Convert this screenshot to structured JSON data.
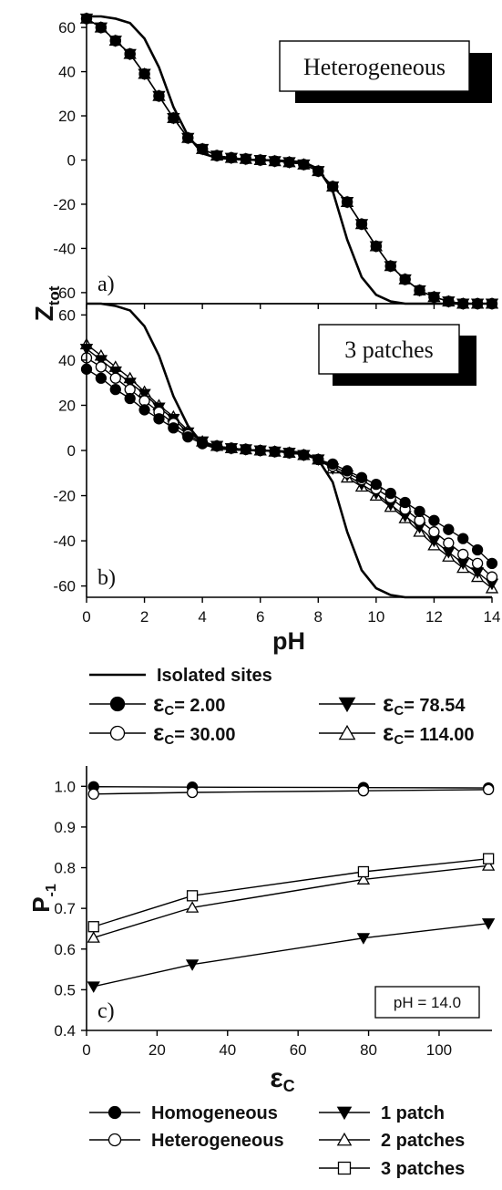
{
  "chart_data": [
    {
      "panel": "a)",
      "type": "line",
      "title": "",
      "annotation": "Heterogeneous",
      "xlim": [
        0,
        14
      ],
      "ylim": [
        -65,
        65
      ],
      "xticks": [
        0,
        2,
        4,
        6,
        8,
        10,
        12,
        14
      ],
      "yticks": [
        60,
        40,
        20,
        0,
        -20,
        -40,
        -60
      ],
      "series": [
        {
          "name": "Isolated sites",
          "marker": "none",
          "x": [
            0,
            0.5,
            1,
            1.5,
            2,
            2.5,
            3,
            3.5,
            4,
            4.5,
            5,
            5.5,
            6,
            6.5,
            7,
            7.5,
            8,
            8.5,
            9,
            9.5,
            10,
            10.5,
            11,
            11.5,
            12,
            13,
            14
          ],
          "y": [
            65,
            65,
            64,
            62,
            55,
            42,
            24,
            11,
            3,
            1,
            0.5,
            0.2,
            0,
            -0.2,
            -0.5,
            -1,
            -4,
            -14,
            -36,
            -53,
            -61,
            -64,
            -65,
            -65,
            -65,
            -65,
            -65
          ]
        },
        {
          "name": "εC= 2.00",
          "marker": "filled-circle",
          "x": [
            0,
            0.5,
            1,
            1.5,
            2,
            2.5,
            3,
            3.5,
            4,
            4.5,
            5,
            5.5,
            6,
            6.5,
            7,
            7.5,
            8,
            8.5,
            9,
            9.5,
            10,
            10.5,
            11,
            11.5,
            12,
            12.5,
            13,
            13.5,
            14
          ],
          "y": [
            64,
            60,
            54,
            48,
            39,
            29,
            19,
            10,
            5,
            2,
            1,
            0.5,
            0,
            -0.5,
            -1,
            -2,
            -5,
            -12,
            -19,
            -29,
            -39,
            -48,
            -54,
            -59,
            -62,
            -64,
            -65,
            -65,
            -65
          ]
        },
        {
          "name": "εC= 30.00",
          "marker": "open-circle",
          "x": [
            0,
            0.5,
            1,
            1.5,
            2,
            2.5,
            3,
            3.5,
            4,
            4.5,
            5,
            5.5,
            6,
            6.5,
            7,
            7.5,
            8,
            8.5,
            9,
            9.5,
            10,
            10.5,
            11,
            11.5,
            12,
            12.5,
            13,
            13.5,
            14
          ],
          "y": [
            64,
            60,
            54,
            48,
            39,
            29,
            19,
            10,
            5,
            2,
            1,
            0.5,
            0,
            -0.5,
            -1,
            -2,
            -5,
            -12,
            -19,
            -29,
            -39,
            -48,
            -54,
            -59,
            -62,
            -64,
            -65,
            -65,
            -65
          ]
        },
        {
          "name": "εC= 78.54",
          "marker": "filled-triangle-down",
          "x": [
            0,
            0.5,
            1,
            1.5,
            2,
            2.5,
            3,
            3.5,
            4,
            4.5,
            5,
            5.5,
            6,
            6.5,
            7,
            7.5,
            8,
            8.5,
            9,
            9.5,
            10,
            10.5,
            11,
            11.5,
            12,
            12.5,
            13,
            13.5,
            14
          ],
          "y": [
            64,
            60,
            54,
            48,
            39,
            29,
            19,
            10,
            5,
            2,
            1,
            0.5,
            0,
            -0.5,
            -1,
            -2,
            -5,
            -12,
            -19,
            -29,
            -39,
            -48,
            -54,
            -59,
            -62,
            -64,
            -65,
            -65,
            -65
          ]
        },
        {
          "name": "εC= 114.00",
          "marker": "open-triangle-up",
          "x": [
            0,
            0.5,
            1,
            1.5,
            2,
            2.5,
            3,
            3.5,
            4,
            4.5,
            5,
            5.5,
            6,
            6.5,
            7,
            7.5,
            8,
            8.5,
            9,
            9.5,
            10,
            10.5,
            11,
            11.5,
            12,
            12.5,
            13,
            13.5,
            14
          ],
          "y": [
            64,
            60,
            54,
            48,
            39,
            29,
            19,
            10,
            5,
            2,
            1,
            0.5,
            0,
            -0.5,
            -1,
            -2,
            -5,
            -12,
            -19,
            -29,
            -39,
            -48,
            -54,
            -59,
            -62,
            -64,
            -65,
            -65,
            -65
          ]
        }
      ]
    },
    {
      "panel": "b)",
      "type": "line",
      "title": "",
      "annotation": "3 patches",
      "xlabel": "pH",
      "xlim": [
        0,
        14
      ],
      "ylim": [
        -65,
        65
      ],
      "xticks": [
        0,
        2,
        4,
        6,
        8,
        10,
        12,
        14
      ],
      "yticks": [
        60,
        40,
        20,
        0,
        -20,
        -40,
        -60
      ],
      "series": [
        {
          "name": "Isolated sites",
          "marker": "none",
          "x": [
            0,
            0.5,
            1,
            1.5,
            2,
            2.5,
            3,
            3.5,
            4,
            4.5,
            5,
            5.5,
            6,
            6.5,
            7,
            7.5,
            8,
            8.5,
            9,
            9.5,
            10,
            10.5,
            11,
            11.5,
            12,
            13,
            14
          ],
          "y": [
            65,
            65,
            64,
            62,
            55,
            42,
            24,
            11,
            3,
            1,
            0.5,
            0.2,
            0,
            -0.2,
            -0.5,
            -1,
            -4,
            -14,
            -36,
            -53,
            -61,
            -64,
            -65,
            -65,
            -65,
            -65,
            -65
          ]
        },
        {
          "name": "εC= 2.00",
          "marker": "filled-circle",
          "x": [
            0,
            0.5,
            1,
            1.5,
            2,
            2.5,
            3,
            3.5,
            4,
            4.5,
            5,
            5.5,
            6,
            6.5,
            7,
            7.5,
            8,
            8.5,
            9,
            9.5,
            10,
            10.5,
            11,
            11.5,
            12,
            12.5,
            13,
            13.5,
            14
          ],
          "y": [
            36,
            32,
            27,
            23,
            18,
            14,
            10,
            6,
            3,
            2,
            1,
            0.5,
            0,
            -0.5,
            -1,
            -2,
            -4,
            -6,
            -9,
            -12,
            -15,
            -19,
            -23,
            -27,
            -31,
            -35,
            -39,
            -44,
            -50
          ]
        },
        {
          "name": "εC= 30.00",
          "marker": "open-circle",
          "x": [
            0,
            0.5,
            1,
            1.5,
            2,
            2.5,
            3,
            3.5,
            4,
            4.5,
            5,
            5.5,
            6,
            6.5,
            7,
            7.5,
            8,
            8.5,
            9,
            9.5,
            10,
            10.5,
            11,
            11.5,
            12,
            12.5,
            13,
            13.5,
            14
          ],
          "y": [
            41,
            37,
            32,
            27,
            22,
            17,
            12,
            7,
            3.5,
            2,
            1,
            0.5,
            0,
            -0.5,
            -1,
            -2,
            -4,
            -7,
            -10,
            -13,
            -17,
            -21,
            -26,
            -31,
            -36,
            -41,
            -46,
            -50,
            -56
          ]
        },
        {
          "name": "εC= 78.54",
          "marker": "filled-triangle-down",
          "x": [
            0,
            0.5,
            1,
            1.5,
            2,
            2.5,
            3,
            3.5,
            4,
            4.5,
            5,
            5.5,
            6,
            6.5,
            7,
            7.5,
            8,
            8.5,
            9,
            9.5,
            10,
            10.5,
            11,
            11.5,
            12,
            12.5,
            13,
            13.5,
            14
          ],
          "y": [
            45,
            40,
            35,
            30,
            25,
            19,
            14,
            8,
            4,
            2,
            1,
            0.5,
            0,
            -0.5,
            -1,
            -2,
            -4,
            -8,
            -11,
            -15,
            -19,
            -24,
            -29,
            -34,
            -40,
            -45,
            -50,
            -54,
            -59
          ]
        },
        {
          "name": "εC= 114.00",
          "marker": "open-triangle-up",
          "x": [
            0,
            0.5,
            1,
            1.5,
            2,
            2.5,
            3,
            3.5,
            4,
            4.5,
            5,
            5.5,
            6,
            6.5,
            7,
            7.5,
            8,
            8.5,
            9,
            9.5,
            10,
            10.5,
            11,
            11.5,
            12,
            12.5,
            13,
            13.5,
            14
          ],
          "y": [
            47,
            42,
            37,
            32,
            26,
            20,
            15,
            9,
            4,
            2,
            1,
            0.5,
            0,
            -0.5,
            -1,
            -2,
            -4,
            -8,
            -12,
            -16,
            -20,
            -25,
            -30,
            -36,
            -42,
            -47,
            -52,
            -56,
            -61
          ]
        }
      ]
    },
    {
      "panel": "c)",
      "type": "line",
      "title": "",
      "annotation": "pH = 14.0",
      "xlim": [
        0,
        115
      ],
      "ylim": [
        0.4,
        1.05
      ],
      "xticks": [
        0,
        20,
        40,
        60,
        80,
        100
      ],
      "yticks": [
        0.4,
        0.5,
        0.6,
        0.7,
        0.8,
        0.9,
        1.0
      ],
      "series": [
        {
          "name": "Homogeneous",
          "marker": "filled-circle",
          "x": [
            2,
            30,
            78.54,
            114
          ],
          "y": [
            0.999,
            0.998,
            0.997,
            0.996
          ]
        },
        {
          "name": "Heterogeneous",
          "marker": "open-circle",
          "x": [
            2,
            30,
            78.54,
            114
          ],
          "y": [
            0.981,
            0.985,
            0.989,
            0.992
          ]
        },
        {
          "name": "1 patch",
          "marker": "filled-triangle-down",
          "x": [
            2,
            30,
            78.54,
            114
          ],
          "y": [
            0.508,
            0.562,
            0.627,
            0.663
          ]
        },
        {
          "name": "2 patches",
          "marker": "open-triangle-up",
          "x": [
            2,
            30,
            78.54,
            114
          ],
          "y": [
            0.628,
            0.702,
            0.771,
            0.805
          ]
        },
        {
          "name": "3 patches",
          "marker": "open-square",
          "x": [
            2,
            30,
            78.54,
            114
          ],
          "y": [
            0.655,
            0.731,
            0.79,
            0.822
          ]
        }
      ]
    }
  ],
  "labels": {
    "ab_ylabel_main": "Z",
    "ab_ylabel_sub": "tot",
    "ab_xlabel": "pH",
    "c_ylabel_main": "P",
    "c_ylabel_sub": "-1",
    "c_xlabel_main": "ε",
    "c_xlabel_sub": "C"
  },
  "legend_ab": [
    {
      "name": "Isolated sites",
      "marker": "none"
    },
    {
      "name": "εC= 2.00",
      "marker": "filled-circle",
      "sym": "ε",
      "sub": "C",
      "rest": "= 2.00"
    },
    {
      "name": "εC= 78.54",
      "marker": "filled-triangle-down",
      "sym": "ε",
      "sub": "C",
      "rest": "= 78.54"
    },
    {
      "name": "εC= 30.00",
      "marker": "open-circle",
      "sym": "ε",
      "sub": "C",
      "rest": "= 30.00"
    },
    {
      "name": "εC= 114.00",
      "marker": "open-triangle-up",
      "sym": "ε",
      "sub": "C",
      "rest": "= 114.00"
    }
  ],
  "legend_c": [
    {
      "name": "Homogeneous",
      "marker": "filled-circle"
    },
    {
      "name": "1 patch",
      "marker": "filled-triangle-down"
    },
    {
      "name": "Heterogeneous",
      "marker": "open-circle"
    },
    {
      "name": "2 patches",
      "marker": "open-triangle-up"
    },
    {
      "name": "3 patches",
      "marker": "open-square"
    }
  ]
}
